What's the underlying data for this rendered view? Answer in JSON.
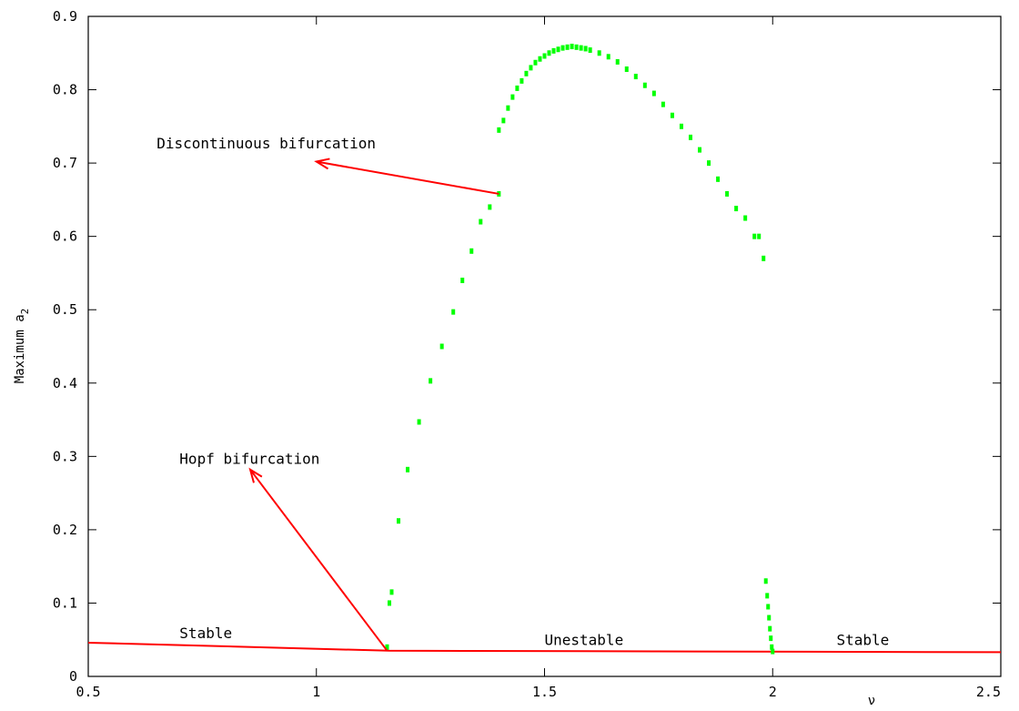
{
  "chart_data": {
    "type": "scatter",
    "title": "",
    "xlabel": "ν",
    "ylabel_main": "Maximum a",
    "ylabel_sub": "2",
    "xlim": [
      0.5,
      2.5
    ],
    "ylim": [
      0,
      0.9
    ],
    "x_ticks": [
      "0.5",
      "1",
      "1.5",
      "2",
      "2.5"
    ],
    "y_ticks": [
      "0",
      "0.1",
      "0.2",
      "0.3",
      "0.4",
      "0.5",
      "0.6",
      "0.7",
      "0.8",
      "0.9"
    ],
    "grid": false,
    "colors": {
      "bifurcation_points": "#00ff00",
      "stability_line": "#ff0000",
      "arrows": "#ff0000"
    },
    "stability_line": {
      "x": [
        0.5,
        1.16,
        2.5
      ],
      "y": [
        0.046,
        0.035,
        0.033
      ]
    },
    "bifurcation_points": {
      "x": [
        1.155,
        1.16,
        1.165,
        1.18,
        1.2,
        1.225,
        1.25,
        1.275,
        1.3,
        1.32,
        1.34,
        1.36,
        1.38,
        1.4,
        1.4,
        1.41,
        1.42,
        1.43,
        1.44,
        1.45,
        1.46,
        1.47,
        1.48,
        1.49,
        1.5,
        1.51,
        1.52,
        1.53,
        1.54,
        1.55,
        1.56,
        1.57,
        1.58,
        1.59,
        1.6,
        1.62,
        1.64,
        1.66,
        1.68,
        1.7,
        1.72,
        1.74,
        1.76,
        1.78,
        1.8,
        1.82,
        1.84,
        1.86,
        1.88,
        1.9,
        1.92,
        1.94,
        1.96,
        1.97,
        1.98,
        1.985,
        1.988,
        1.99,
        1.992,
        1.994,
        1.996,
        1.998,
        2.0
      ],
      "y": [
        0.04,
        0.1,
        0.115,
        0.212,
        0.282,
        0.347,
        0.403,
        0.45,
        0.497,
        0.54,
        0.58,
        0.62,
        0.64,
        0.658,
        0.745,
        0.758,
        0.775,
        0.79,
        0.802,
        0.812,
        0.822,
        0.83,
        0.837,
        0.842,
        0.846,
        0.85,
        0.853,
        0.855,
        0.857,
        0.858,
        0.859,
        0.858,
        0.857,
        0.856,
        0.854,
        0.85,
        0.845,
        0.838,
        0.828,
        0.818,
        0.806,
        0.795,
        0.78,
        0.765,
        0.75,
        0.735,
        0.718,
        0.7,
        0.678,
        0.658,
        0.638,
        0.625,
        0.6,
        0.6,
        0.57,
        0.13,
        0.11,
        0.095,
        0.08,
        0.065,
        0.052,
        0.04,
        0.034
      ]
    },
    "annotations": [
      {
        "text": "Discontinuous bifurcation",
        "x": 0.65,
        "y": 0.72
      },
      {
        "text": "Hopf bifurcation",
        "x": 0.7,
        "y": 0.29
      },
      {
        "text": "Stable",
        "x": 0.7,
        "y": 0.052
      },
      {
        "text": "Unestable",
        "x": 1.5,
        "y": 0.043
      },
      {
        "text": "Stable",
        "x": 2.14,
        "y": 0.043
      }
    ],
    "arrows": [
      {
        "from": [
          1.4,
          0.658
        ],
        "to": [
          1.0,
          0.702
        ]
      },
      {
        "from": [
          1.155,
          0.035
        ],
        "to": [
          0.855,
          0.282
        ]
      }
    ]
  }
}
